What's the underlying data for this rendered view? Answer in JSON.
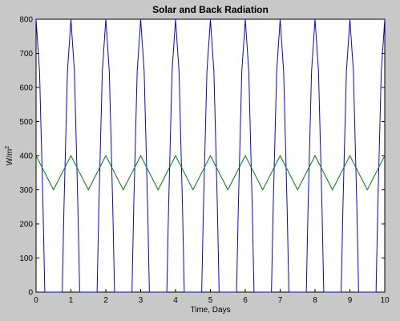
{
  "chart_data": {
    "type": "line",
    "title": "Solar and Back Radiation",
    "xlabel": "Time, Days",
    "ylabel_main": "W/m",
    "ylabel_sup": "2",
    "xlim": [
      0,
      10
    ],
    "ylim": [
      0,
      800
    ],
    "xticks": [
      "0",
      "1",
      "2",
      "3",
      "4",
      "5",
      "6",
      "7",
      "8",
      "9",
      "10"
    ],
    "yticks": [
      "0",
      "100",
      "200",
      "300",
      "400",
      "500",
      "600",
      "700",
      "800"
    ],
    "grid": false,
    "legend": "none",
    "series": [
      {
        "color": "#0000ff",
        "description": "solar radiation, clipped at zero, peaking near 800 once per day",
        "x": [
          0,
          0.1,
          0.2,
          0.25,
          0.3,
          0.7,
          0.75,
          0.8,
          0.9,
          1.0,
          1.1,
          1.2,
          1.25,
          1.3,
          1.7,
          1.75,
          1.8,
          1.9,
          2.0,
          2.1,
          2.2,
          2.25,
          2.3,
          2.7,
          2.75,
          2.8,
          2.9,
          3.0,
          3.1,
          3.2,
          3.25,
          3.3,
          3.7,
          3.75,
          3.8,
          3.9,
          4.0,
          4.1,
          4.2,
          4.25,
          4.3,
          4.7,
          4.75,
          4.8,
          4.9,
          5.0,
          5.1,
          5.2,
          5.25,
          5.3,
          5.7,
          5.75,
          5.8,
          5.9,
          6.0,
          6.1,
          6.2,
          6.25,
          6.3,
          6.7,
          6.75,
          6.8,
          6.9,
          7.0,
          7.1,
          7.2,
          7.25,
          7.3,
          7.7,
          7.75,
          7.8,
          7.9,
          8.0,
          8.1,
          8.2,
          8.25,
          8.3,
          8.7,
          8.75,
          8.8,
          8.9,
          9.0,
          9.1,
          9.2,
          9.25,
          9.3,
          9.7,
          9.75,
          9.8,
          9.9,
          10.0
        ],
        "y": [
          800,
          647,
          247,
          0,
          0,
          0,
          0,
          247,
          647,
          800,
          647,
          247,
          0,
          0,
          0,
          0,
          247,
          647,
          800,
          647,
          247,
          0,
          0,
          0,
          0,
          247,
          647,
          800,
          647,
          247,
          0,
          0,
          0,
          0,
          247,
          647,
          800,
          647,
          247,
          0,
          0,
          0,
          0,
          247,
          647,
          800,
          647,
          247,
          0,
          0,
          0,
          0,
          247,
          647,
          800,
          647,
          247,
          0,
          0,
          0,
          0,
          247,
          647,
          800,
          647,
          247,
          0,
          0,
          0,
          0,
          247,
          647,
          800,
          647,
          247,
          0,
          0,
          0,
          0,
          247,
          647,
          800,
          647,
          247,
          0,
          0,
          0,
          0,
          247,
          647,
          800
        ]
      },
      {
        "color": "#008000",
        "description": "back radiation oscillating between about 300 and 400 once per day",
        "x": [
          0,
          0.25,
          0.5,
          0.75,
          1.0,
          1.25,
          1.5,
          1.75,
          2.0,
          2.25,
          2.5,
          2.75,
          3.0,
          3.25,
          3.5,
          3.75,
          4.0,
          4.25,
          4.5,
          4.75,
          5.0,
          5.25,
          5.5,
          5.75,
          6.0,
          6.25,
          6.5,
          6.75,
          7.0,
          7.25,
          7.5,
          7.75,
          8.0,
          8.25,
          8.5,
          8.75,
          9.0,
          9.25,
          9.5,
          9.75,
          10.0
        ],
        "y": [
          400,
          350,
          300,
          350,
          400,
          350,
          300,
          350,
          400,
          350,
          300,
          350,
          400,
          350,
          300,
          350,
          400,
          350,
          300,
          350,
          400,
          350,
          300,
          350,
          400,
          350,
          300,
          350,
          400,
          350,
          300,
          350,
          400,
          350,
          300,
          350,
          400,
          350,
          300,
          350,
          400
        ]
      }
    ]
  }
}
